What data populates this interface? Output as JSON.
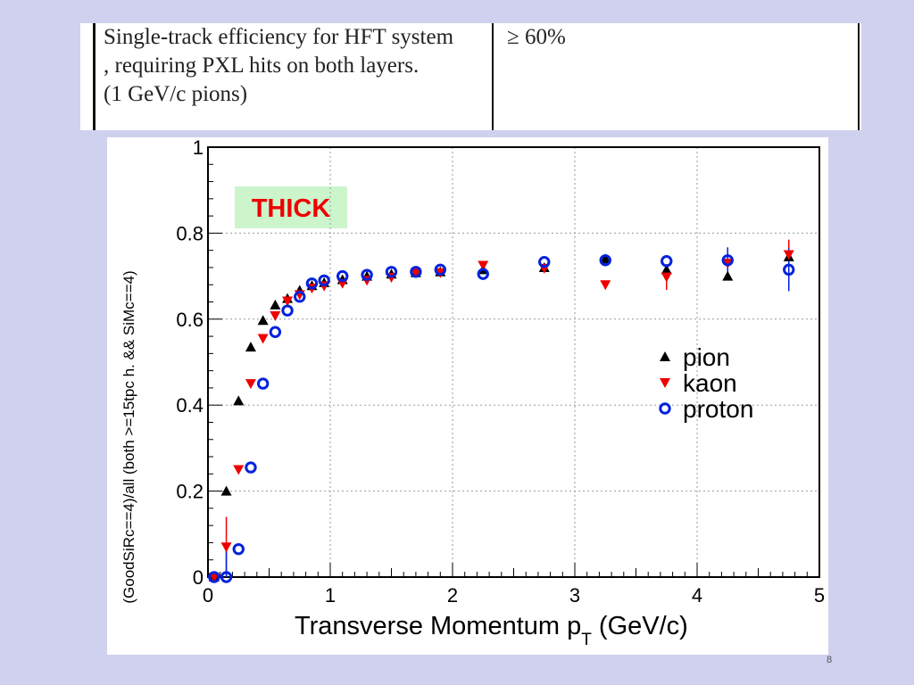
{
  "table": {
    "description_lines": [
      "Single-track efficiency for HFT system",
      ", requiring PXL hits on both layers.",
      "(1 GeV/c pions)"
    ],
    "requirement": "≥ 60%"
  },
  "slide_number": "8",
  "colors": {
    "background": "#cfd1ee",
    "pion": "#000000",
    "kaon": "#ee0000",
    "proton": "#0022dd",
    "label_box": "#ccf5cc",
    "label_text": "#ee0000"
  },
  "chart_data": {
    "type": "scatter",
    "title": "",
    "annotation": "THICK",
    "xlabel": "Transverse Momentum p",
    "xlabel_subscript": "T",
    "xlabel_suffix": " (GeV/c)",
    "ylabel": "(GoodSiRc==4)/all (both >=15tpc h. && SiMc==4)",
    "xlim": [
      0,
      5
    ],
    "ylim": [
      0,
      1.0
    ],
    "x_ticks": [
      "0",
      "1",
      "2",
      "3",
      "4",
      "5"
    ],
    "y_ticks": [
      "0",
      "0.2",
      "0.4",
      "0.6",
      "0.8",
      "1"
    ],
    "grid": true,
    "legend_position": "right-middle",
    "series": [
      {
        "name": "pion",
        "marker": "triangle-up",
        "color": "#000000",
        "points": [
          [
            0.05,
            0.0
          ],
          [
            0.15,
            0.2
          ],
          [
            0.25,
            0.41
          ],
          [
            0.35,
            0.535
          ],
          [
            0.45,
            0.597
          ],
          [
            0.55,
            0.633
          ],
          [
            0.65,
            0.648
          ],
          [
            0.75,
            0.667
          ],
          [
            0.85,
            0.678
          ],
          [
            0.95,
            0.685
          ],
          [
            1.1,
            0.692
          ],
          [
            1.3,
            0.7
          ],
          [
            1.5,
            0.705
          ],
          [
            1.7,
            0.708
          ],
          [
            1.9,
            0.71
          ],
          [
            2.25,
            0.715
          ],
          [
            2.75,
            0.72
          ],
          [
            3.25,
            0.74
          ],
          [
            3.75,
            0.715
          ],
          [
            4.25,
            0.7
          ],
          [
            4.75,
            0.745
          ]
        ]
      },
      {
        "name": "kaon",
        "marker": "triangle-down",
        "color": "#ee0000",
        "points": [
          [
            0.05,
            0.0
          ],
          [
            0.15,
            0.07
          ],
          [
            0.25,
            0.25
          ],
          [
            0.35,
            0.45
          ],
          [
            0.45,
            0.555
          ],
          [
            0.55,
            0.608
          ],
          [
            0.65,
            0.642
          ],
          [
            0.75,
            0.657
          ],
          [
            0.85,
            0.672
          ],
          [
            0.95,
            0.677
          ],
          [
            1.1,
            0.683
          ],
          [
            1.3,
            0.69
          ],
          [
            1.5,
            0.697
          ],
          [
            1.7,
            0.708
          ],
          [
            1.9,
            0.708
          ],
          [
            2.25,
            0.725
          ],
          [
            2.75,
            0.718
          ],
          [
            3.25,
            0.68
          ],
          [
            3.75,
            0.698
          ],
          [
            4.25,
            0.73
          ],
          [
            4.75,
            0.75
          ]
        ],
        "errors": [
          [
            0.15,
            0.07
          ],
          [
            3.75,
            0.03
          ],
          [
            4.25,
            0.03
          ],
          [
            4.75,
            0.035
          ]
        ]
      },
      {
        "name": "proton",
        "marker": "open-circle",
        "color": "#0022dd",
        "points": [
          [
            0.05,
            0.0
          ],
          [
            0.15,
            0.0
          ],
          [
            0.25,
            0.065
          ],
          [
            0.35,
            0.255
          ],
          [
            0.45,
            0.45
          ],
          [
            0.55,
            0.57
          ],
          [
            0.65,
            0.62
          ],
          [
            0.75,
            0.652
          ],
          [
            0.85,
            0.683
          ],
          [
            0.95,
            0.69
          ],
          [
            1.1,
            0.7
          ],
          [
            1.3,
            0.703
          ],
          [
            1.5,
            0.71
          ],
          [
            1.7,
            0.71
          ],
          [
            1.9,
            0.715
          ],
          [
            2.25,
            0.705
          ],
          [
            2.75,
            0.733
          ],
          [
            3.25,
            0.737
          ],
          [
            3.75,
            0.735
          ],
          [
            4.25,
            0.737
          ],
          [
            4.75,
            0.715
          ]
        ],
        "errors": [
          [
            0.15,
            0.07
          ],
          [
            4.25,
            0.03
          ],
          [
            4.75,
            0.05
          ]
        ]
      }
    ]
  }
}
